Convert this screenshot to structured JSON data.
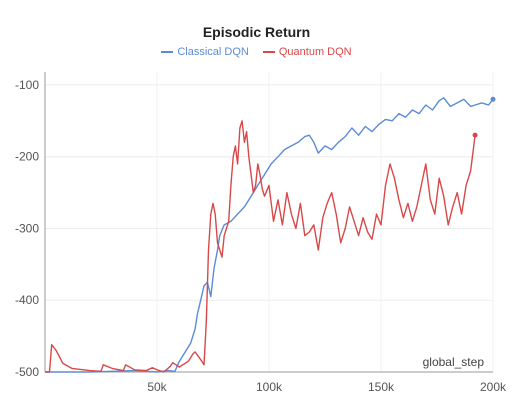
{
  "chart_data": {
    "type": "line",
    "title": "Episodic Return",
    "xlabel": "global_step",
    "ylabel": "",
    "xlim": [
      0,
      200000
    ],
    "ylim": [
      -500,
      -82
    ],
    "grid": true,
    "legend": "top-center",
    "x_ticks": [
      50000,
      100000,
      150000,
      200000
    ],
    "x_tick_labels": [
      "50k",
      "100k",
      "150k",
      "200k"
    ],
    "y_ticks": [
      -100,
      -200,
      -300,
      -400,
      -500
    ],
    "y_tick_labels": [
      "-100",
      "-200",
      "-300",
      "-400",
      "-500"
    ],
    "series": [
      {
        "name": "Classical DQN",
        "color": "#5b8bd6",
        "x": [
          0,
          10000,
          20000,
          30000,
          40000,
          50000,
          55000,
          58000,
          60000,
          63000,
          65000,
          67000,
          68000,
          69500,
          71000,
          72500,
          74000,
          75500,
          77000,
          78000,
          80000,
          83000,
          86000,
          89000,
          92000,
          95000,
          98000,
          101000,
          104000,
          107000,
          110000,
          113000,
          116000,
          118000,
          120000,
          122000,
          125000,
          128000,
          131000,
          134000,
          137000,
          140000,
          143000,
          146000,
          149000,
          152000,
          155000,
          158000,
          161000,
          164000,
          167000,
          170000,
          173000,
          176000,
          178000,
          181000,
          184000,
          187000,
          190000,
          192000,
          195000,
          198000,
          200000
        ],
        "y": [
          -500,
          -500,
          -500,
          -499,
          -498,
          -500,
          -498,
          -499,
          -485,
          -470,
          -460,
          -440,
          -420,
          -400,
          -380,
          -375,
          -395,
          -355,
          -330,
          -310,
          -295,
          -290,
          -280,
          -270,
          -255,
          -240,
          -225,
          -210,
          -200,
          -190,
          -185,
          -180,
          -172,
          -170,
          -180,
          -195,
          -185,
          -190,
          -180,
          -172,
          -160,
          -170,
          -158,
          -165,
          -155,
          -148,
          -150,
          -140,
          -145,
          -135,
          -140,
          -128,
          -135,
          -122,
          -118,
          -130,
          -125,
          -120,
          -130,
          -128,
          -125,
          -128,
          -120
        ]
      },
      {
        "name": "Quantum DQN",
        "color": "#d94848",
        "x": [
          0,
          2000,
          3000,
          5000,
          8000,
          12000,
          20000,
          25000,
          26000,
          30000,
          35000,
          36000,
          40000,
          45000,
          48000,
          50000,
          53000,
          56000,
          57000,
          60000,
          64000,
          66000,
          67000,
          70000,
          71000,
          72000,
          73000,
          74000,
          75000,
          76000,
          77000,
          79000,
          80000,
          82000,
          83000,
          84000,
          85000,
          86000,
          87000,
          88000,
          89000,
          90000,
          91000,
          92000,
          93000,
          94000,
          95000,
          96000,
          97000,
          98000,
          100000,
          102000,
          104000,
          106000,
          108000,
          110000,
          112000,
          114000,
          116000,
          118000,
          120000,
          122000,
          124000,
          126000,
          128000,
          130000,
          132000,
          134000,
          136000,
          138000,
          140000,
          142000,
          144000,
          146000,
          148000,
          150000,
          152000,
          154000,
          156000,
          158000,
          160000,
          162000,
          164000,
          166000,
          168000,
          170000,
          172000,
          174000,
          176000,
          178000,
          180000,
          182000,
          184000,
          186000,
          188000,
          190000,
          192000
        ],
        "y": [
          -500,
          -500,
          -462,
          -470,
          -488,
          -495,
          -498,
          -499,
          -490,
          -495,
          -498,
          -490,
          -497,
          -498,
          -494,
          -497,
          -500,
          -492,
          -487,
          -493,
          -485,
          -475,
          -472,
          -485,
          -490,
          -430,
          -330,
          -280,
          -265,
          -280,
          -320,
          -340,
          -310,
          -290,
          -240,
          -200,
          -185,
          -210,
          -160,
          -150,
          -180,
          -165,
          -200,
          -225,
          -250,
          -240,
          -210,
          -225,
          -245,
          -255,
          -240,
          -290,
          -260,
          -295,
          -250,
          -280,
          -300,
          -265,
          -310,
          -305,
          -295,
          -330,
          -285,
          -265,
          -250,
          -280,
          -320,
          -300,
          -270,
          -290,
          -310,
          -285,
          -305,
          -315,
          -280,
          -295,
          -240,
          -210,
          -230,
          -260,
          -285,
          -265,
          -290,
          -270,
          -240,
          -210,
          -260,
          -280,
          -230,
          -255,
          -295,
          -270,
          -250,
          -280,
          -240,
          -220,
          -170
        ]
      }
    ]
  }
}
